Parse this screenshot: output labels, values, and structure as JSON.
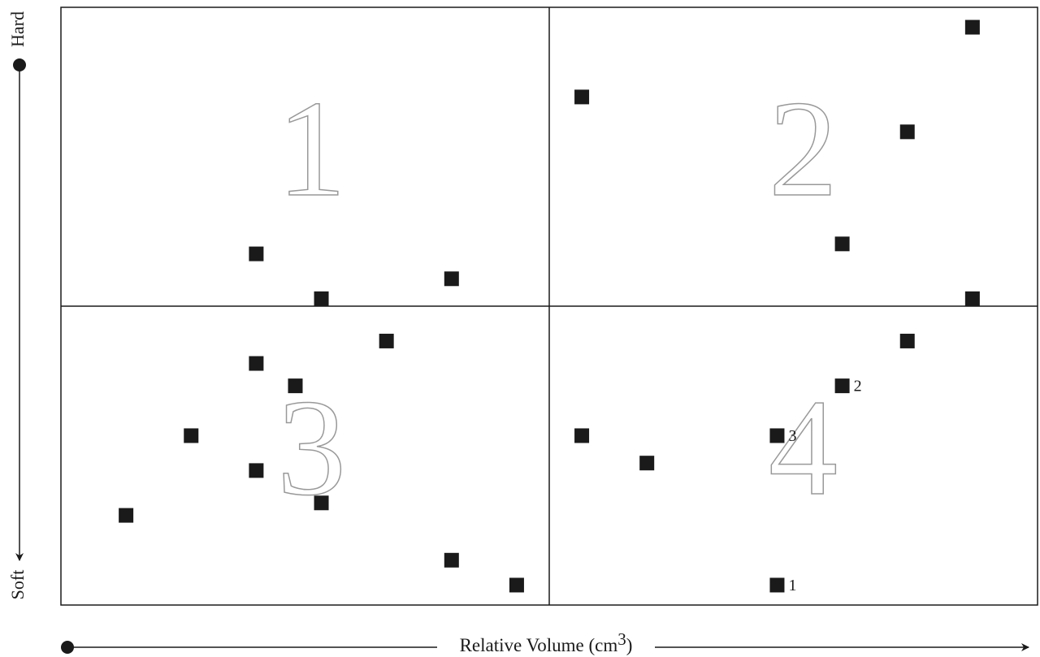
{
  "chart_data": {
    "type": "scatter",
    "y_top_label": "Hard",
    "y_bottom_label": "Soft",
    "x_label": {
      "text": "Relative Volume (cm",
      "sup": "3",
      "end": ")"
    },
    "quadrant_labels": [
      "1",
      "2",
      "3",
      "4"
    ],
    "xlim": [
      0,
      15
    ],
    "ylim": [
      0,
      24
    ],
    "xdivider": 7.5,
    "ydivider": 12,
    "series": [
      {
        "color": "#1a1a1a",
        "x": [
          3,
          4,
          6,
          8,
          14,
          13,
          12,
          14,
          5,
          3,
          3.6,
          2,
          3,
          4,
          1,
          6,
          7,
          13,
          12,
          8,
          11,
          9,
          11
        ],
        "values": [
          14.1,
          12.3,
          13.1,
          20.4,
          23.2,
          19.0,
          14.5,
          12.3,
          10.6,
          9.7,
          8.8,
          6.8,
          5.4,
          4.1,
          3.6,
          1.8,
          0.8,
          10.6,
          8.8,
          6.8,
          6.8,
          5.7,
          0.8
        ],
        "labels": [
          null,
          null,
          null,
          null,
          null,
          null,
          null,
          null,
          null,
          null,
          null,
          null,
          null,
          null,
          null,
          null,
          null,
          null,
          "2",
          null,
          "3",
          null,
          "1"
        ]
      }
    ]
  }
}
